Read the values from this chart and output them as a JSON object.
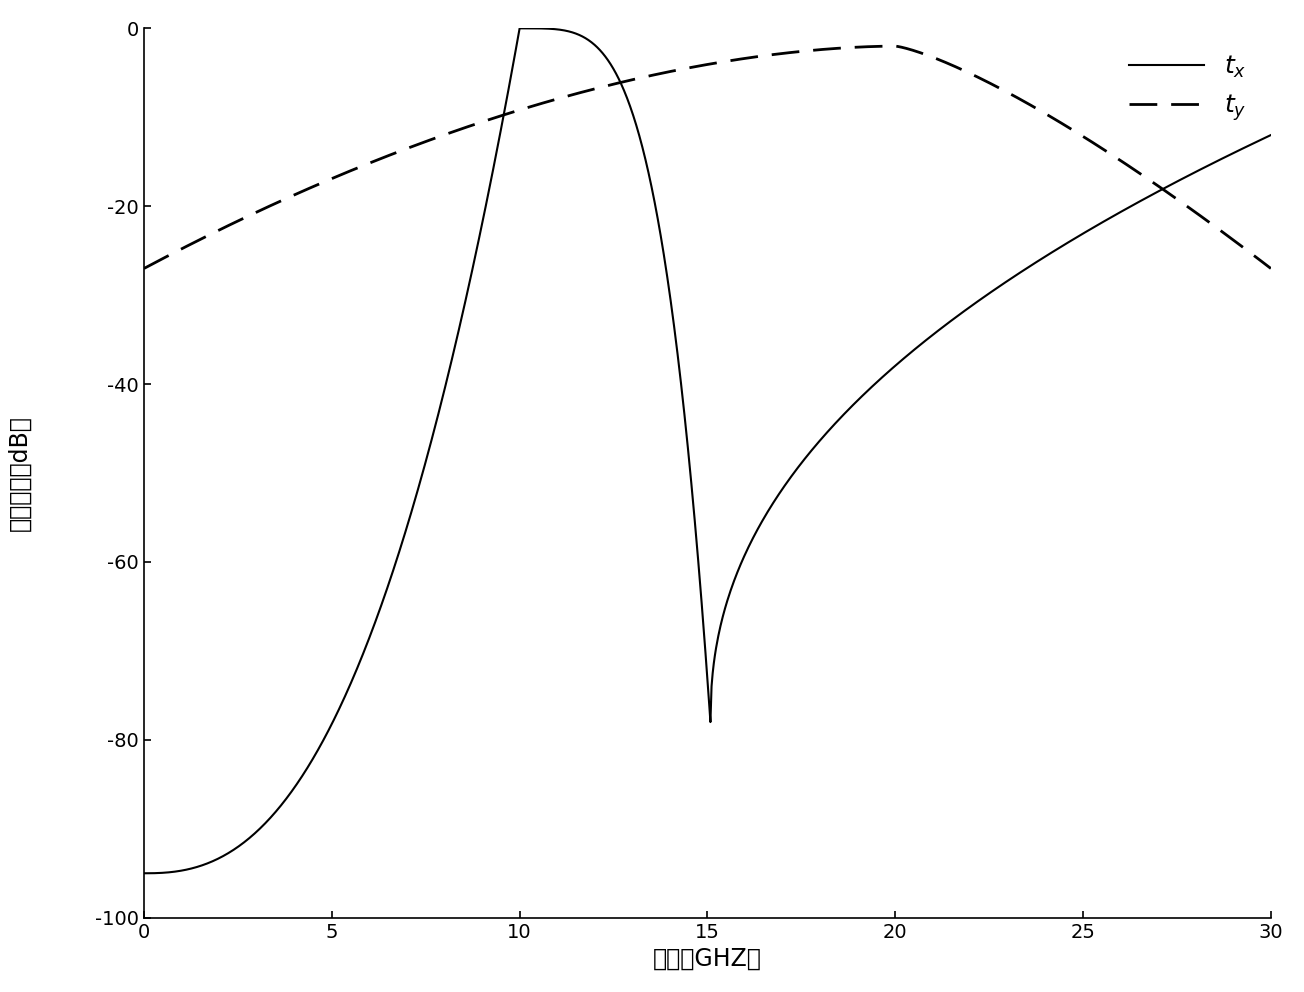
{
  "xlabel": "频率（GHZ）",
  "ylabel_lines": [
    "透",
    "射",
    "系",
    "数",
    "（",
    "d",
    "B",
    "）"
  ],
  "xlim": [
    0,
    30
  ],
  "ylim": [
    -100,
    0
  ],
  "xticks": [
    0,
    5,
    10,
    15,
    20,
    25,
    30
  ],
  "yticks": [
    0,
    -20,
    -40,
    -60,
    -80,
    -100
  ],
  "line_color": "#000000",
  "background_color": "#ffffff",
  "tick_fontsize": 14,
  "label_fontsize": 17
}
